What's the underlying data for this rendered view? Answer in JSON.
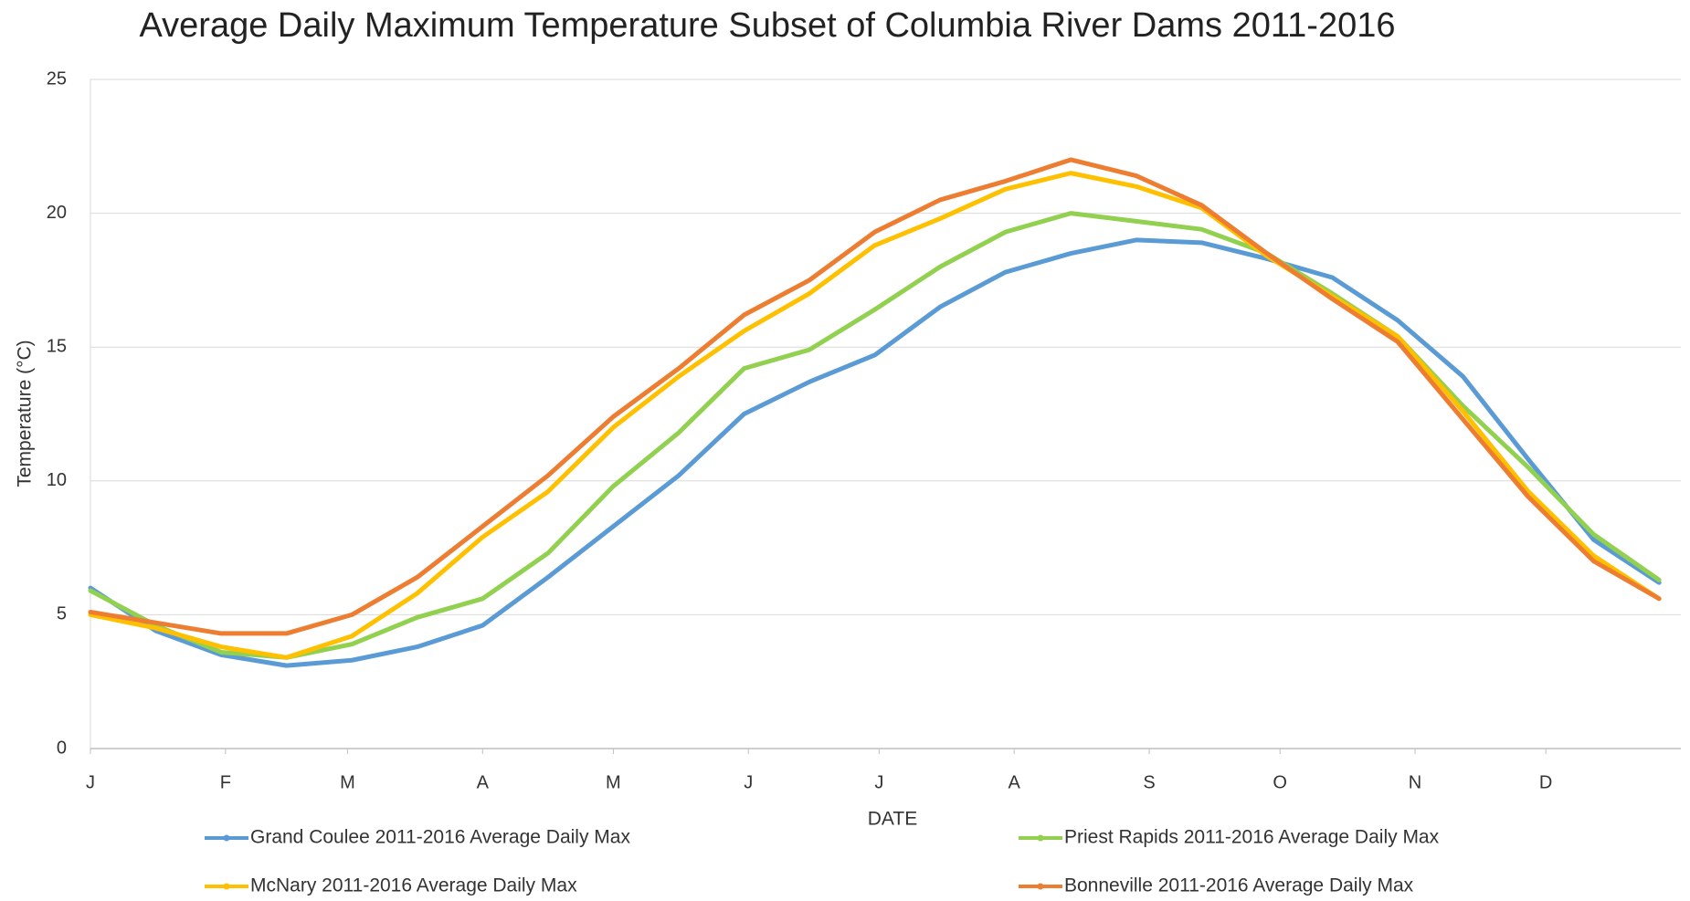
{
  "chart_data": {
    "type": "line",
    "title": "Average Daily Maximum Temperature Subset of Columbia River Dams 2011-2016",
    "x_label": "DATE",
    "y_label": "Temperature (°C)",
    "x": [
      0,
      15,
      30,
      45,
      60,
      75,
      90,
      105,
      120,
      135,
      150,
      165,
      180,
      195,
      210,
      225,
      240,
      255,
      270,
      285,
      300,
      315,
      330,
      345,
      360
    ],
    "xlim": [
      0,
      365
    ],
    "xticks": [
      {
        "value": 0,
        "label": "J"
      },
      {
        "value": 31,
        "label": "F"
      },
      {
        "value": 59,
        "label": "M"
      },
      {
        "value": 90,
        "label": "A"
      },
      {
        "value": 120,
        "label": "M"
      },
      {
        "value": 151,
        "label": "J"
      },
      {
        "value": 181,
        "label": "J"
      },
      {
        "value": 212,
        "label": "A"
      },
      {
        "value": 243,
        "label": "S"
      },
      {
        "value": 273,
        "label": "O"
      },
      {
        "value": 304,
        "label": "N"
      },
      {
        "value": 334,
        "label": "D"
      }
    ],
    "ylim": [
      0,
      25
    ],
    "yticks": [
      0,
      5,
      10,
      15,
      20,
      25
    ],
    "grid": true,
    "legend": "bottom",
    "series": [
      {
        "name": "Grand Coulee 2011-2016 Average Daily Max",
        "color": "#5b9bd5",
        "values": [
          6.0,
          4.4,
          3.5,
          3.1,
          3.3,
          3.8,
          4.6,
          6.4,
          8.3,
          10.2,
          12.5,
          13.7,
          14.7,
          16.5,
          17.8,
          18.5,
          19.0,
          18.9,
          18.3,
          17.6,
          16.0,
          13.9,
          10.8,
          7.8,
          6.2
        ]
      },
      {
        "name": "Priest Rapids 2011-2016 Average Daily Max",
        "color": "#92d050",
        "values": [
          5.9,
          4.6,
          3.6,
          3.4,
          3.9,
          4.9,
          5.6,
          7.3,
          9.8,
          11.8,
          14.2,
          14.9,
          16.4,
          18.0,
          19.3,
          20.0,
          19.7,
          19.4,
          18.5,
          17.0,
          15.4,
          12.8,
          10.5,
          8.0,
          6.3
        ]
      },
      {
        "name": "McNary 2011-2016 Average Daily Max",
        "color": "#ffc000",
        "values": [
          5.0,
          4.5,
          3.8,
          3.4,
          4.2,
          5.8,
          7.9,
          9.6,
          12.0,
          13.9,
          15.6,
          17.0,
          18.8,
          19.8,
          20.9,
          21.5,
          21.0,
          20.2,
          18.4,
          16.9,
          15.4,
          12.6,
          9.6,
          7.2,
          5.6
        ]
      },
      {
        "name": "Bonneville 2011-2016 Average Daily Max",
        "color": "#ed7d31",
        "values": [
          5.1,
          4.7,
          4.3,
          4.3,
          5.0,
          6.4,
          8.3,
          10.2,
          12.4,
          14.2,
          16.2,
          17.5,
          19.3,
          20.5,
          21.2,
          22.0,
          21.4,
          20.3,
          18.5,
          16.8,
          15.2,
          12.3,
          9.4,
          7.0,
          5.6
        ]
      }
    ]
  }
}
